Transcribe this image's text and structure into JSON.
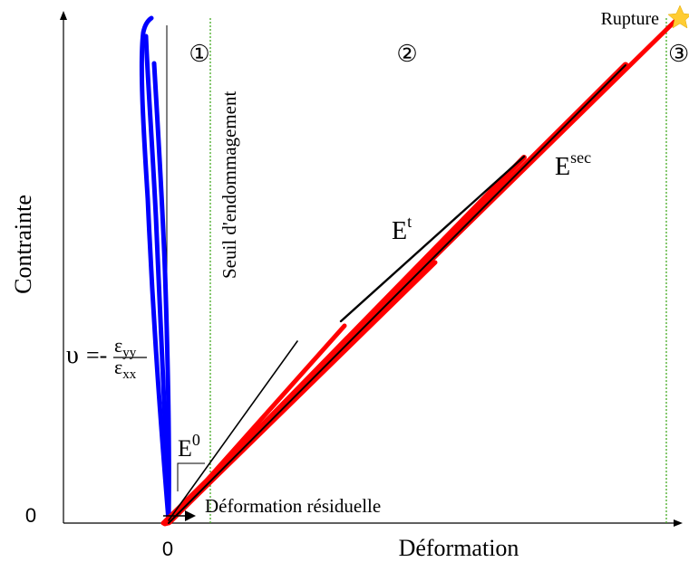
{
  "axes": {
    "y_label": "Contrainte",
    "x_label": "Déformation",
    "x_origin": "0",
    "y_origin": "0"
  },
  "zones": [
    "①",
    "②",
    "③"
  ],
  "threshold_label": "Seuil d'endommagement",
  "rupture_label": "Rupture",
  "moduli": {
    "e0": {
      "base": "E",
      "sup": "0"
    },
    "et": {
      "base": "E",
      "sup": "t"
    },
    "esec": {
      "base": "E",
      "sup": "sec"
    }
  },
  "residual_label": "Déformation résiduelle",
  "poisson": {
    "symbol": "υ",
    "equals_minus": "=-",
    "numerator_base": "ε",
    "numerator_sub": "yy",
    "denominator_base": "ε",
    "denominator_sub": "xx"
  },
  "colors": {
    "loading_curve": "#ff0000",
    "lateral_curve": "#0000ff",
    "threshold_lines": "#44aa22",
    "star": "#ffcc33",
    "axes": "#000000"
  }
}
